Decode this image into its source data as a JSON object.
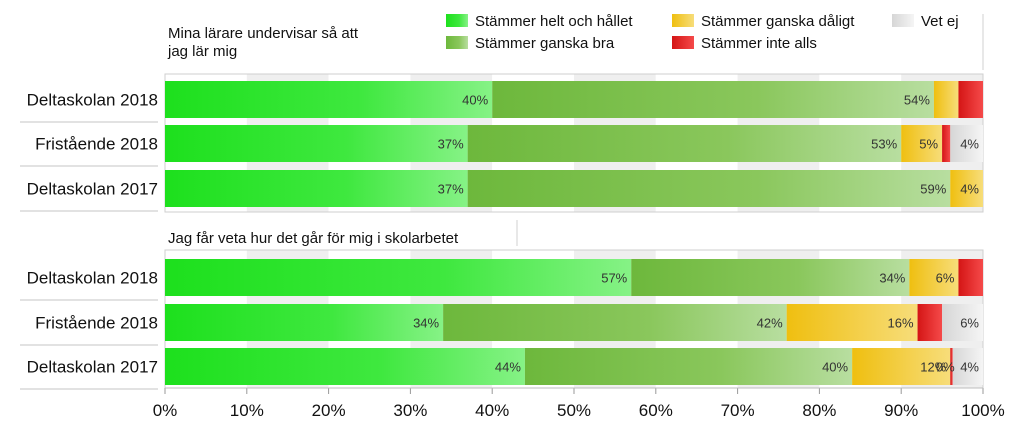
{
  "chart_data": {
    "type": "bar",
    "orientation": "horizontal",
    "stacked": true,
    "legend": [
      {
        "name": "Stämmer helt och hållet",
        "color": "#21e021"
      },
      {
        "name": "Stämmer ganska bra",
        "color": "#7cc24a"
      },
      {
        "name": "Stämmer ganska dåligt",
        "color": "#f2c418"
      },
      {
        "name": "Stämmer inte alls",
        "color": "#e31a1c"
      },
      {
        "name": "Vet ej",
        "color": "#dedede"
      }
    ],
    "x_ticks": [
      "0%",
      "10%",
      "20%",
      "30%",
      "40%",
      "50%",
      "60%",
      "70%",
      "80%",
      "90%",
      "100%"
    ],
    "xlim": [
      0,
      100
    ],
    "panels": [
      {
        "title": "Mina lärare undervisar så att jag lär mig",
        "rows": [
          {
            "label": "Deltaskolan 2018",
            "values": [
              40,
              54,
              3,
              3,
              0
            ],
            "labels": [
              "40%",
              "54%",
              "",
              "",
              ""
            ]
          },
          {
            "label": "Fristående 2018",
            "values": [
              37,
              53,
              5,
              1,
              4
            ],
            "labels": [
              "37%",
              "53%",
              "5%",
              "",
              "4%"
            ]
          },
          {
            "label": "Deltaskolan 2017",
            "values": [
              37,
              59,
              4,
              0,
              0
            ],
            "labels": [
              "37%",
              "59%",
              "4%",
              "",
              ""
            ]
          }
        ]
      },
      {
        "title": "Jag får veta hur det går för mig i skolarbetet",
        "rows": [
          {
            "label": "Deltaskolan 2018",
            "values": [
              57,
              34,
              6,
              3,
              0
            ],
            "labels": [
              "57%",
              "34%",
              "6%",
              "",
              ""
            ]
          },
          {
            "label": "Fristående 2018",
            "values": [
              34,
              42,
              16,
              3,
              6
            ],
            "labels": [
              "34%",
              "42%",
              "16%",
              "",
              "6%"
            ]
          },
          {
            "label": "Deltaskolan 2017",
            "values": [
              44,
              40,
              12,
              0.3,
              4
            ],
            "labels": [
              "44%",
              "40%",
              "12%",
              "0%",
              "4%"
            ]
          }
        ]
      }
    ]
  }
}
